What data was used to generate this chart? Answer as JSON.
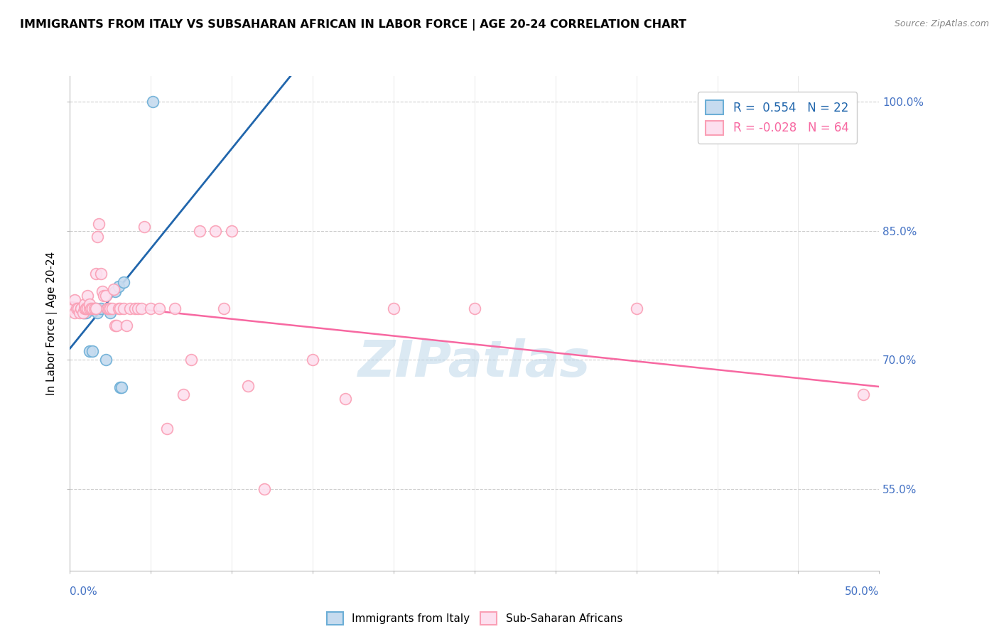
{
  "title": "IMMIGRANTS FROM ITALY VS SUBSAHARAN AFRICAN IN LABOR FORCE | AGE 20-24 CORRELATION CHART",
  "source": "Source: ZipAtlas.com",
  "ylabel": "In Labor Force | Age 20-24",
  "italy_color_edge": "#6baed6",
  "italy_color_fill": "#c6dbef",
  "ssa_color_edge": "#fa9fb5",
  "ssa_color_fill": "#fde0ef",
  "italy_line_color": "#2166ac",
  "ssa_line_color": "#f768a1",
  "italy_R": 0.554,
  "italy_N": 22,
  "ssa_R": -0.028,
  "ssa_N": 64,
  "xmin": 0.0,
  "xmax": 0.5,
  "ymin": 0.455,
  "ymax": 1.03,
  "yticks": [
    0.55,
    0.7,
    0.85,
    1.0
  ],
  "ytick_labels": [
    "55.0%",
    "70.0%",
    "85.0%",
    "100.0%"
  ],
  "italy_x": [
    0.001,
    0.003,
    0.008,
    0.009,
    0.01,
    0.011,
    0.011,
    0.012,
    0.013,
    0.014,
    0.016,
    0.017,
    0.019,
    0.022,
    0.023,
    0.025,
    0.028,
    0.03,
    0.031,
    0.032,
    0.033,
    0.051
  ],
  "italy_y": [
    0.76,
    0.76,
    0.755,
    0.755,
    0.755,
    0.76,
    0.76,
    0.71,
    0.76,
    0.71,
    0.76,
    0.755,
    0.76,
    0.7,
    0.76,
    0.755,
    0.78,
    0.785,
    0.668,
    0.668,
    0.79,
    1.0
  ],
  "ssa_x": [
    0.001,
    0.001,
    0.002,
    0.003,
    0.003,
    0.004,
    0.005,
    0.006,
    0.007,
    0.007,
    0.008,
    0.009,
    0.009,
    0.01,
    0.01,
    0.011,
    0.011,
    0.012,
    0.012,
    0.013,
    0.014,
    0.015,
    0.016,
    0.016,
    0.017,
    0.018,
    0.019,
    0.02,
    0.021,
    0.022,
    0.023,
    0.024,
    0.025,
    0.026,
    0.027,
    0.028,
    0.029,
    0.03,
    0.031,
    0.033,
    0.035,
    0.037,
    0.04,
    0.042,
    0.044,
    0.046,
    0.05,
    0.055,
    0.06,
    0.065,
    0.07,
    0.075,
    0.08,
    0.09,
    0.095,
    0.1,
    0.11,
    0.12,
    0.15,
    0.17,
    0.2,
    0.25,
    0.35,
    0.49
  ],
  "ssa_y": [
    0.76,
    0.76,
    0.76,
    0.755,
    0.77,
    0.76,
    0.76,
    0.755,
    0.76,
    0.76,
    0.755,
    0.76,
    0.765,
    0.76,
    0.76,
    0.76,
    0.775,
    0.76,
    0.765,
    0.76,
    0.76,
    0.76,
    0.76,
    0.8,
    0.843,
    0.858,
    0.8,
    0.78,
    0.775,
    0.775,
    0.76,
    0.76,
    0.76,
    0.76,
    0.782,
    0.74,
    0.74,
    0.76,
    0.76,
    0.76,
    0.74,
    0.76,
    0.76,
    0.76,
    0.76,
    0.855,
    0.76,
    0.76,
    0.62,
    0.76,
    0.66,
    0.7,
    0.85,
    0.85,
    0.76,
    0.85,
    0.67,
    0.55,
    0.7,
    0.655,
    0.76,
    0.76,
    0.76,
    0.66
  ]
}
